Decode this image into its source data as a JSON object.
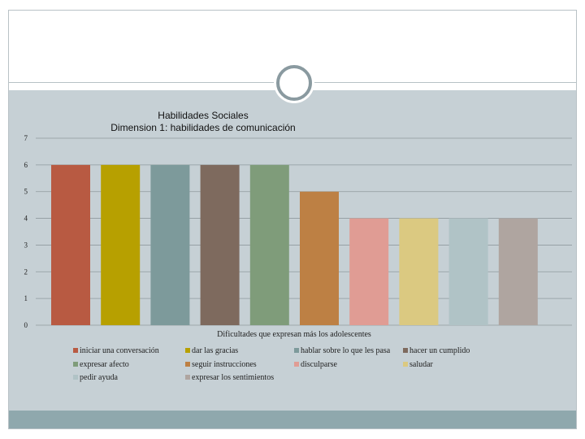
{
  "chart_data": {
    "type": "bar",
    "title": [
      "Habilidades Sociales",
      "Dimension 1: habilidades de comunicación"
    ],
    "xlabel": "Dificultades que expresan más los adolescentes",
    "ylabel": "",
    "ylim": [
      0,
      7
    ],
    "yticks": [
      0,
      1,
      2,
      3,
      4,
      5,
      6,
      7
    ],
    "grid": true,
    "legend_position": "bottom",
    "series": [
      {
        "name": "iniciar una conversación",
        "value": 6,
        "color": "#b85a42"
      },
      {
        "name": "dar las gracias",
        "value": 6,
        "color": "#b7a000"
      },
      {
        "name": "hablar sobre lo que les pasa",
        "value": 6,
        "color": "#7d9a9b"
      },
      {
        "name": "hacer un cumplido",
        "value": 6,
        "color": "#7e6a5e"
      },
      {
        "name": "expresar afecto",
        "value": 6,
        "color": "#7f9c7a"
      },
      {
        "name": "seguir instrucciones",
        "value": 5,
        "color": "#bd8044"
      },
      {
        "name": "disculparse",
        "value": 4,
        "color": "#e09c94"
      },
      {
        "name": "saludar",
        "value": 4,
        "color": "#dbc981"
      },
      {
        "name": "pedir ayuda",
        "value": 4,
        "color": "#b0c3c6"
      },
      {
        "name": "expresar los sentimientos",
        "value": 4,
        "color": "#afa5a0"
      }
    ]
  }
}
